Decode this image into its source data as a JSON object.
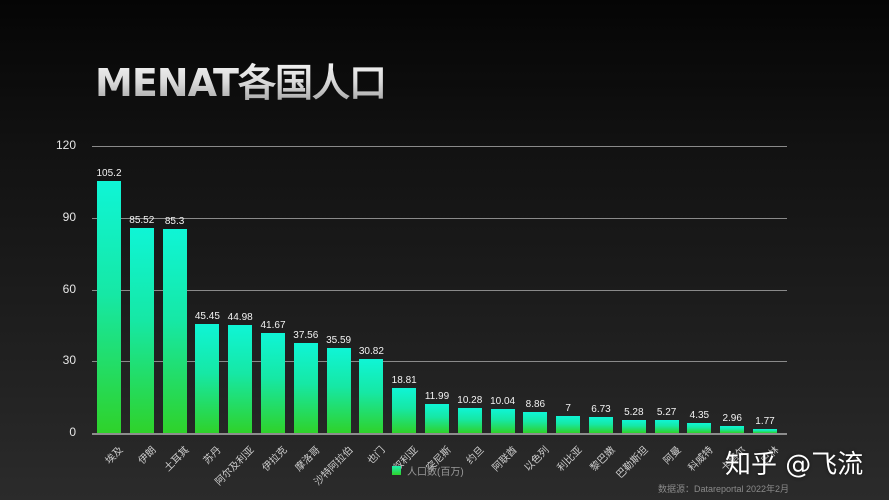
{
  "title": "MENAT各国人口",
  "chart_data": {
    "type": "bar",
    "title": "MENAT各国人口",
    "xlabel": "",
    "ylabel": "",
    "ylim": [
      0,
      120
    ],
    "yticks": [
      0,
      30,
      60,
      90,
      120
    ],
    "grid": true,
    "legend_position": "bottom",
    "categories": [
      "埃及",
      "伊朗",
      "土耳其",
      "苏丹",
      "阿尔及利亚",
      "伊拉克",
      "摩洛哥",
      "沙特阿拉伯",
      "也门",
      "叙利亚",
      "突尼斯",
      "约旦",
      "阿联酋",
      "以色列",
      "利比亚",
      "黎巴嫩",
      "巴勒斯坦",
      "阿曼",
      "科威特",
      "卡塔尔",
      "巴林"
    ],
    "series": [
      {
        "name": "人口数(百万)",
        "values": [
          105.2,
          85.52,
          85.3,
          45.45,
          44.98,
          41.67,
          37.56,
          35.59,
          30.82,
          18.81,
          11.99,
          10.28,
          10.04,
          8.86,
          7,
          6.73,
          5.28,
          5.27,
          4.35,
          2.96,
          1.77
        ]
      }
    ],
    "value_labels": [
      "105.2",
      "85.52",
      "85.3",
      "45.45",
      "44.98",
      "41.67",
      "37.56",
      "35.59",
      "30.82",
      "18.81",
      "11.99",
      "10.28",
      "10.04",
      "8.86",
      "7",
      "6.73",
      "5.28",
      "5.27",
      "4.35",
      "2.96",
      "1.77"
    ],
    "colors": {
      "bar_top": "#0ff5d6",
      "bar_bottom": "#2fd22a",
      "grid": "#8a8a8a"
    }
  },
  "legend": {
    "label": "人口数(百万)"
  },
  "watermark": "知乎 @飞流",
  "source": "数据源：Datareportal  2022年2月"
}
